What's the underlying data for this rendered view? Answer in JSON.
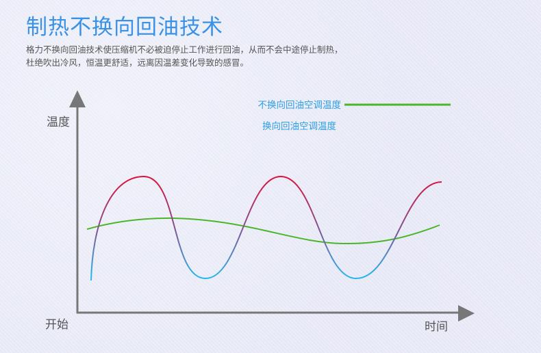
{
  "title": "制热不换向回油技术",
  "description": [
    "格力不换向回油技术使压缩机不必被迫停止工作进行回油，从而不会中途停止制热，",
    "杜绝吹出冷风，恒温更舒适，远离因温差变化导致的感冒。"
  ],
  "diagram": {
    "y_axis_label": "温度",
    "origin_label": "开始",
    "x_axis_label": "时间",
    "legend": [
      {
        "label": "不换向回油空调温度",
        "color": "#4cb52a"
      },
      {
        "label": "换向回油空调温度",
        "colors": [
          "#d9143c",
          "#27b5ee"
        ]
      }
    ],
    "axis_color": "#777777"
  }
}
